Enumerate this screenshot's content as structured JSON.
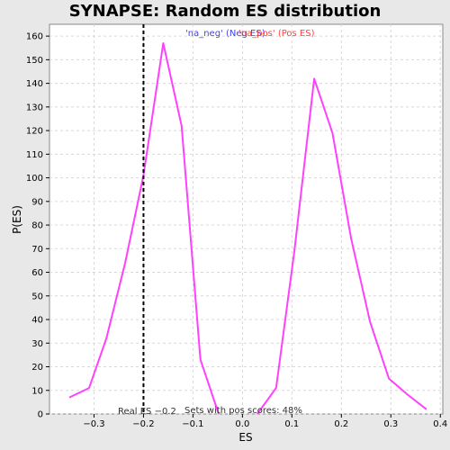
{
  "chart_data": {
    "type": "line",
    "title": "SYNAPSE: Random ES distribution",
    "xlabel": "ES",
    "ylabel": "P(ES)",
    "xlim": [
      -0.39,
      0.405
    ],
    "ylim": [
      0,
      165
    ],
    "x_ticks": [
      -0.3,
      -0.2,
      -0.1,
      0.0,
      0.1,
      0.2,
      0.3,
      0.4
    ],
    "x_tick_labels": [
      "−0.3",
      "−0.2",
      "−0.1",
      "0.0",
      "0.1",
      "0.2",
      "0.3",
      "0.4"
    ],
    "y_ticks": [
      0,
      10,
      20,
      30,
      40,
      50,
      60,
      70,
      80,
      90,
      100,
      110,
      120,
      130,
      140,
      150,
      160
    ],
    "grid": true,
    "series": [
      {
        "name": "'na_neg' (Neg ES)",
        "color": "#4040ff",
        "x": [
          -0.35,
          -0.31,
          -0.275,
          -0.237,
          -0.2,
          -0.16,
          -0.123,
          -0.085,
          -0.048
        ],
        "y": [
          7,
          11,
          32,
          64,
          101,
          157,
          122,
          23,
          0
        ]
      },
      {
        "name": "'na_pos' (Pos ES)",
        "color": "#ff4040",
        "x": [
          0.03,
          0.068,
          0.105,
          0.145,
          0.182,
          0.22,
          0.258,
          0.296,
          0.335,
          0.372
        ],
        "y": [
          0,
          11,
          69,
          142,
          119,
          74,
          39,
          15,
          8,
          2
        ]
      }
    ],
    "line_color": "#ff40ff",
    "real_es": {
      "x": -0.2,
      "label": "Real ES −0.2"
    },
    "annotation": "Sets with pos scores: 48%",
    "legend_placement": "top-center"
  }
}
